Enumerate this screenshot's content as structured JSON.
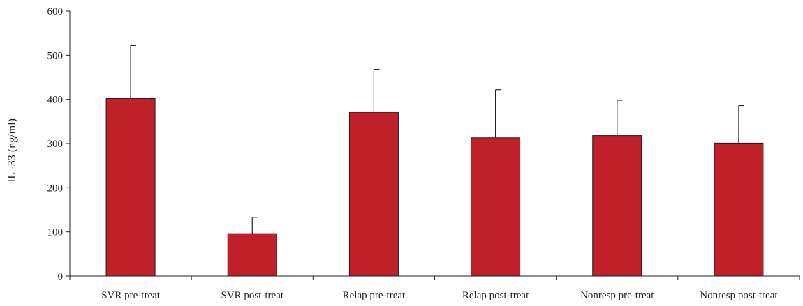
{
  "chart_data": {
    "type": "bar",
    "title": "",
    "xlabel": "",
    "ylabel": "IL -33 (ng/ml)",
    "ylim": [
      0,
      600
    ],
    "yticks": [
      0,
      100,
      200,
      300,
      400,
      500,
      600
    ],
    "grid": false,
    "legend": "none",
    "categories": [
      "SVR pre-treat",
      "SVR post-treat",
      "Relap pre-treat",
      "Relap post-treat",
      "Nonresp pre-treat",
      "Nonresp post-treat"
    ],
    "values": [
      402,
      96,
      371,
      313,
      318,
      301
    ],
    "error_upper": [
      120,
      37,
      97,
      109,
      80,
      85
    ],
    "bar_color": "#c0202a",
    "bar_edge_color": "#1a1a1a"
  }
}
